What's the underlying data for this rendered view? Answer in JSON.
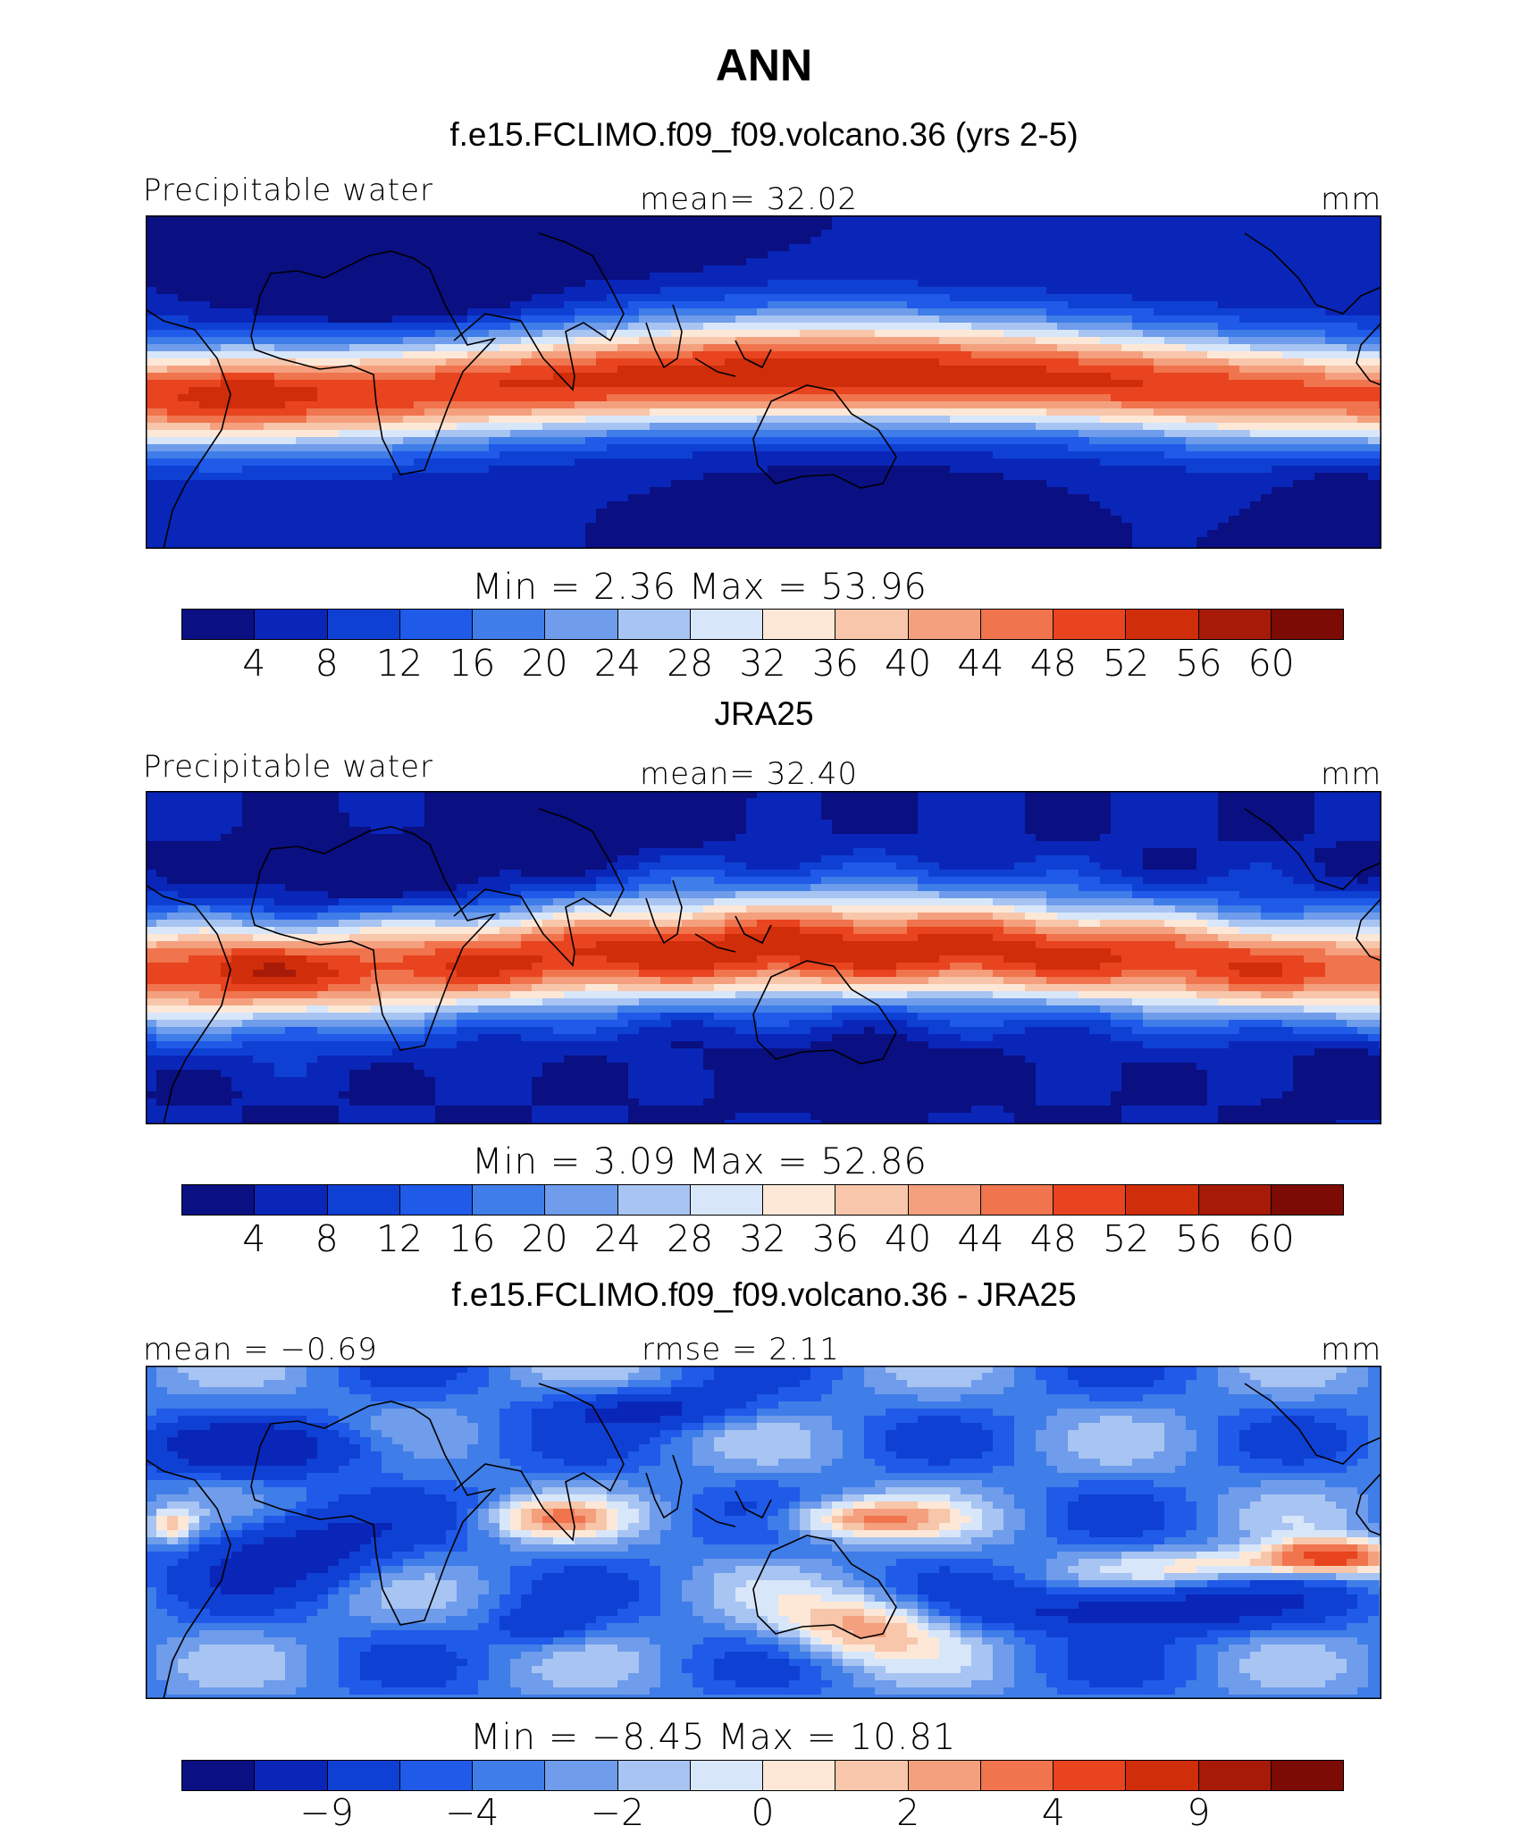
{
  "figure": {
    "title": "ANN"
  },
  "colors": {
    "palette": [
      "#0a0f82",
      "#0a26b8",
      "#0f40d4",
      "#1f5ae8",
      "#3f7de8",
      "#6f9ceb",
      "#a7c4f2",
      "#d8e6fa",
      "#fde8d8",
      "#f8c6aa",
      "#f4a07e",
      "#f0744d",
      "#e8441f",
      "#d02d0a",
      "#a81a08",
      "#7c0a05"
    ],
    "coast": "#000000"
  },
  "panels": [
    {
      "id": "model",
      "header": "f.e15.FCLIMO.f09_f09.volcano.36 (yrs 2-5)",
      "left_label": "Precipitable water",
      "center_label": "mean=   32.02",
      "right_label": "mm",
      "minmax": "Min =     2.36  Max =    53.96",
      "ticks": [
        "4",
        "8",
        "12",
        "16",
        "20",
        "24",
        "28",
        "32",
        "36",
        "40",
        "44",
        "48",
        "52",
        "56",
        "60"
      ]
    },
    {
      "id": "obs",
      "header": "JRA25",
      "left_label": "Precipitable water",
      "center_label": "mean=   32.40",
      "right_label": "mm",
      "minmax": "Min =     3.09  Max =    52.86",
      "ticks": [
        "4",
        "8",
        "12",
        "16",
        "20",
        "24",
        "28",
        "32",
        "36",
        "40",
        "44",
        "48",
        "52",
        "56",
        "60"
      ]
    },
    {
      "id": "diff",
      "header": "f.e15.FCLIMO.f09_f09.volcano.36 - JRA25",
      "left_label": "mean =   −0.69",
      "center_label": "rmse =    2.11",
      "right_label": "mm",
      "minmax": "Min =   −8.45  Max =    10.81",
      "ticks": [
        "−9",
        "−4",
        "−2",
        "0",
        "2",
        "4",
        "9"
      ]
    }
  ]
}
